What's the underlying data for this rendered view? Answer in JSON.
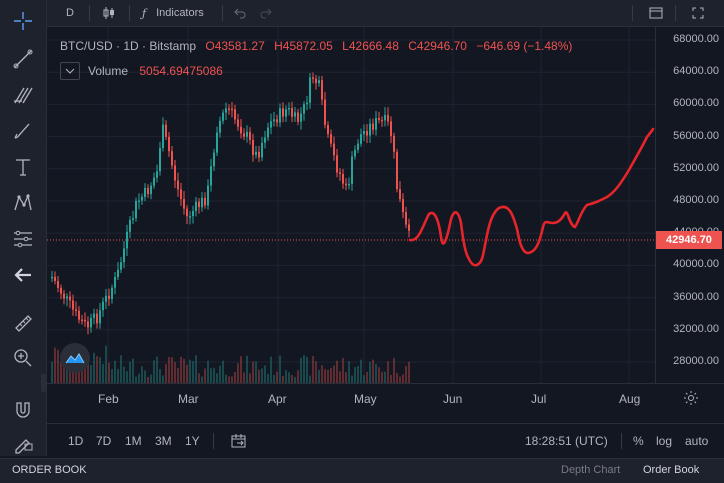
{
  "top_toolbar": {
    "interval": "D",
    "indicators_label": "Indicators"
  },
  "legend": {
    "symbol": "BTC/USD · 1D · Bitstamp",
    "open": "O43581.27",
    "high": "H45872.05",
    "low": "L42666.48",
    "close": "C42946.70",
    "change": "−646.69 (−1.48%)",
    "volume_label": "Volume",
    "volume_value": "5054.69475086"
  },
  "price_axis": {
    "ticks": [
      "68000.00",
      "64000.00",
      "60000.00",
      "56000.00",
      "52000.00",
      "48000.00",
      "44000.00",
      "40000.00",
      "36000.00",
      "32000.00",
      "28000.00"
    ],
    "last_price": "42946.70"
  },
  "time_axis": {
    "ticks": [
      "Feb",
      "Mar",
      "Apr",
      "May",
      "Jun",
      "Jul",
      "Aug"
    ]
  },
  "bottom_bar": {
    "ranges": [
      "1D",
      "7D",
      "1M",
      "3M",
      "1Y"
    ],
    "clock": "18:28:51 (UTC)",
    "percent": "%",
    "log": "log",
    "auto": "auto"
  },
  "footer": {
    "left_tab": "ORDER BOOK",
    "depth_chart": "Depth Chart",
    "order_book": "Order Book"
  },
  "colors": {
    "up": "#26a69a",
    "down": "#ef5350",
    "annotation": "#e5252a"
  }
}
